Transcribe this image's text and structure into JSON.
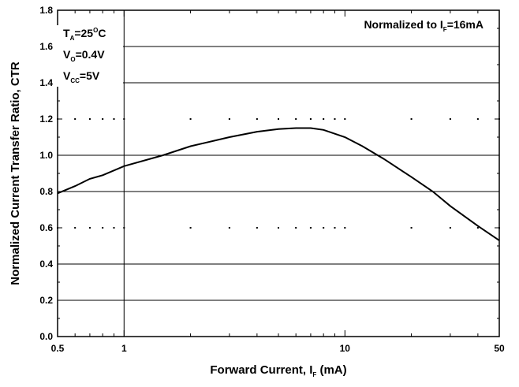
{
  "chart_data": {
    "type": "line",
    "title": "",
    "xlabel": {
      "main": "Forward Current, I",
      "sub": "F",
      "unit": " (mA)"
    },
    "ylabel": "Normalized Current Transfer Ratio, CTR",
    "x_scale": "log",
    "xlim": [
      0.5,
      50
    ],
    "ylim": [
      0.0,
      1.8
    ],
    "x_ticks": [
      "0.5",
      "1",
      "10",
      "50"
    ],
    "y_ticks": [
      "0.0",
      "0.2",
      "0.4",
      "0.6",
      "0.8",
      "1.0",
      "1.2",
      "1.4",
      "1.6",
      "1.8"
    ],
    "y_solid_grid": [
      0.2,
      0.4,
      0.8,
      1.0,
      1.4,
      1.6
    ],
    "y_dotted_grid": [
      0.6,
      1.2
    ],
    "grid": true,
    "series": [
      {
        "x": [
          0.5,
          0.6,
          0.7,
          0.8,
          1.0,
          1.5,
          2,
          3,
          4,
          5,
          6,
          7,
          8,
          10,
          12,
          15,
          20,
          25,
          30,
          40,
          50
        ],
        "y": [
          0.79,
          0.83,
          0.87,
          0.89,
          0.94,
          1.0,
          1.05,
          1.1,
          1.13,
          1.145,
          1.15,
          1.15,
          1.14,
          1.1,
          1.05,
          0.98,
          0.88,
          0.8,
          0.72,
          0.61,
          0.53
        ]
      }
    ],
    "annotations": {
      "normalized": {
        "main": "Normalized to I",
        "sub": "F",
        "tail": "=16mA"
      },
      "conditions": [
        {
          "main": "T",
          "sub": "A",
          "tail": "=25",
          "sup": "O",
          "tail2": "C"
        },
        {
          "main": "V",
          "sub": "O",
          "tail": "=0.4V",
          "sup": "",
          "tail2": ""
        },
        {
          "main": "V",
          "sub": "CC",
          "tail": "=5V",
          "sup": "",
          "tail2": ""
        }
      ]
    }
  }
}
